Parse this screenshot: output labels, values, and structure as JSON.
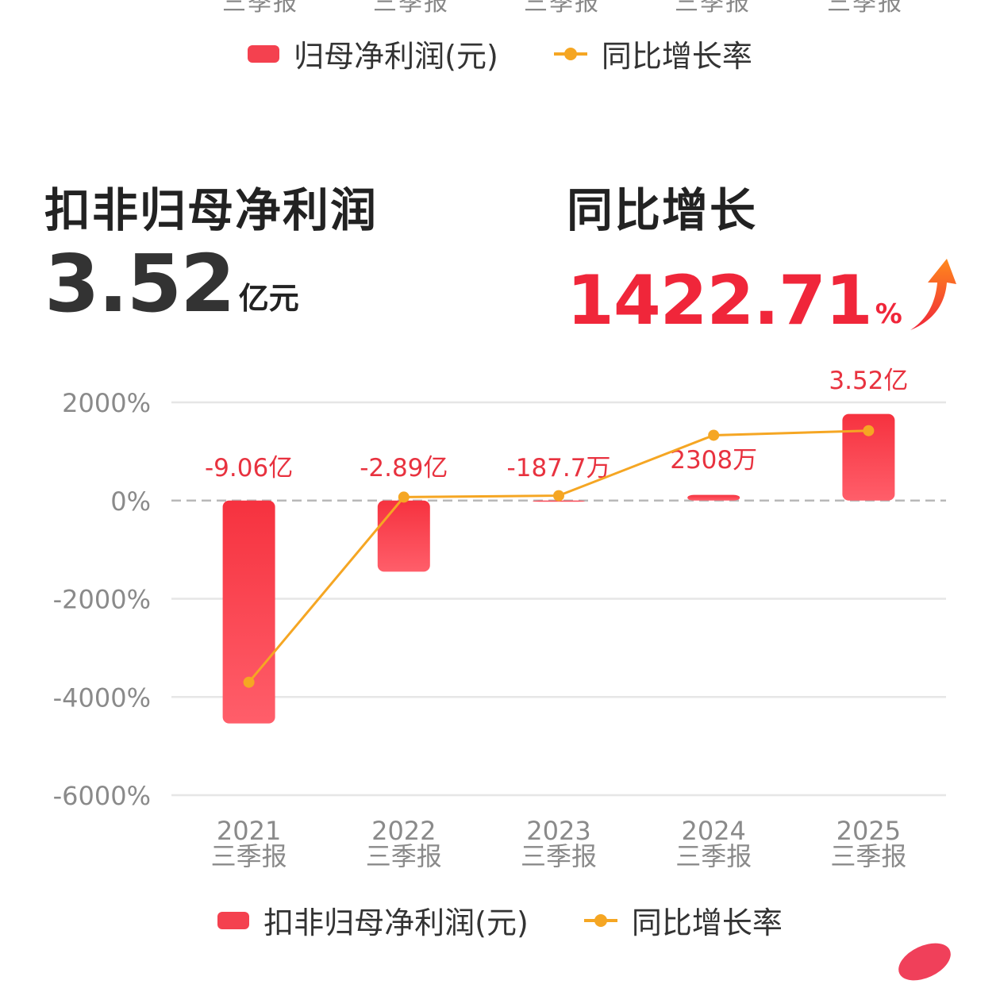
{
  "top_partial_labels": [
    "三季报",
    "三季报",
    "三季报",
    "三季报",
    "三季报"
  ],
  "legend_top": {
    "bar_label": "归母净利润(元)",
    "line_label": "同比增长率"
  },
  "kpi": {
    "left_title": "扣非归母净利润",
    "left_value": "3.52",
    "left_unit": "亿元",
    "right_title": "同比增长",
    "right_value": "1422.71",
    "right_unit": "%",
    "trend_icon": "up-arrow-icon"
  },
  "legend_bottom": {
    "bar_label": "扣非归母净利润(元)",
    "line_label": "同比增长率"
  },
  "colors": {
    "bar": "#f4414f",
    "line": "#f5a623",
    "value_label": "#e8323f",
    "growth": "#f0263a"
  },
  "chart_data": {
    "type": "bar",
    "categories": [
      [
        "2021",
        "三季报"
      ],
      [
        "2022",
        "三季报"
      ],
      [
        "2023",
        "三季报"
      ],
      [
        "2024",
        "三季报"
      ],
      [
        "2025",
        "三季报"
      ]
    ],
    "bar_values_yi": [
      -9.06,
      -2.89,
      -0.01877,
      0.2308,
      3.52
    ],
    "bar_labels": [
      "-9.06亿",
      "-2.89亿",
      "-187.7万",
      "2308万",
      "3.52亿"
    ],
    "growth_rate_pct": [
      -3700,
      70,
      100,
      1330,
      1422.71
    ],
    "y_ticks": [
      "2000%",
      "0%",
      "-2000%",
      "-4000%",
      "-6000%"
    ],
    "ylim_pct": [
      -6000,
      2000
    ],
    "grid": true,
    "legend_position": "bottom"
  }
}
